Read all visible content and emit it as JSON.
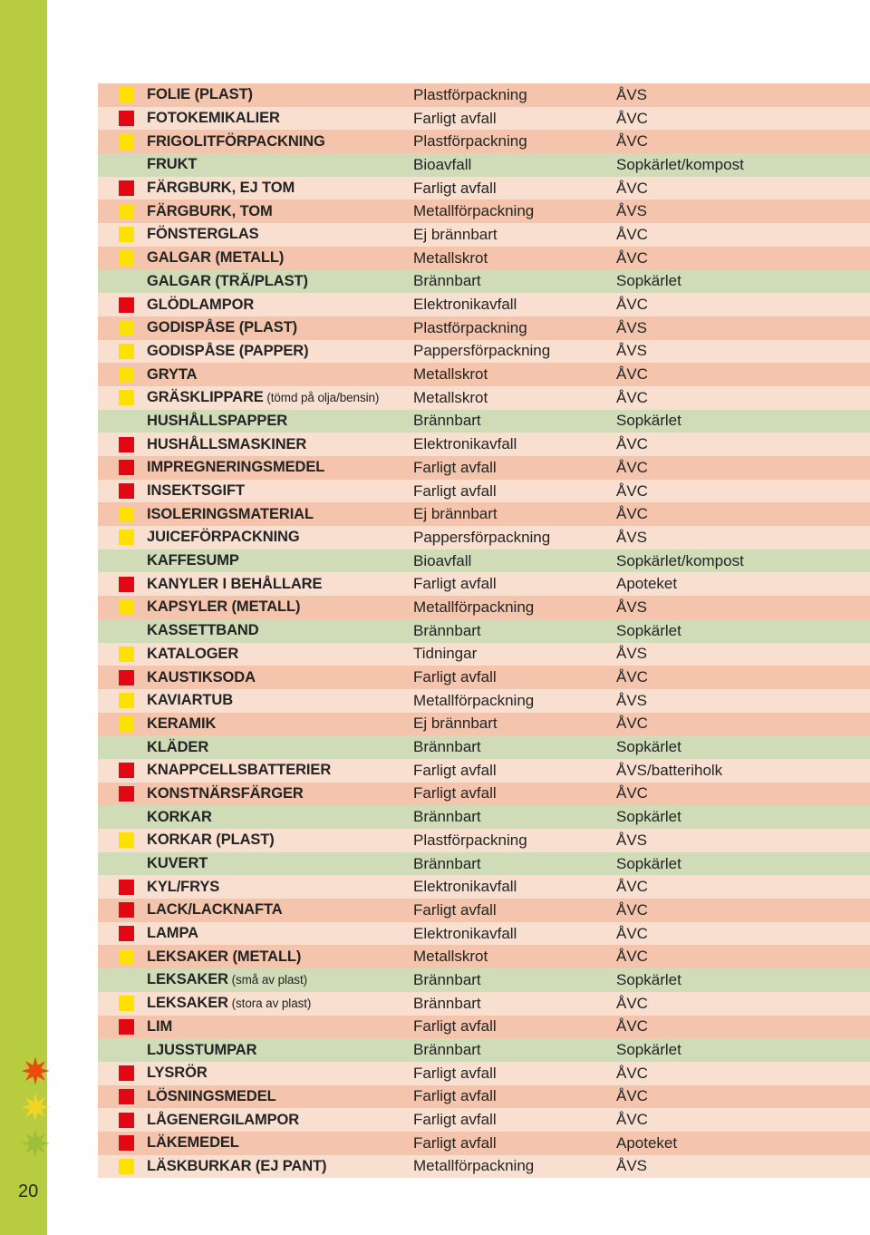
{
  "page_number": "20",
  "sidebar": {
    "color": "#b8cc3f"
  },
  "decor_icons": {
    "colors": [
      "#e84d0e",
      "#f2d423",
      "#9cbf3c"
    ],
    "size": 34
  },
  "swatch_colors": {
    "yellow": "#fde100",
    "red": "#e30613"
  },
  "row_bg_colors": {
    "orange": "#f4c5ac",
    "green": "#d0dcb8",
    "peach": "#f9dfcf"
  },
  "columns": [
    "item",
    "category",
    "destination"
  ],
  "rows": [
    {
      "sw": "yellow",
      "bg": "orange",
      "item": "FOLIE (PLAST)",
      "cat": "Plastförpackning",
      "dest": "ÅVS"
    },
    {
      "sw": "red",
      "bg": "peach",
      "item": "FOTOKEMIKALIER",
      "cat": "Farligt avfall",
      "dest": "ÅVC"
    },
    {
      "sw": "yellow",
      "bg": "orange",
      "item": "FRIGOLITFÖRPACKNING",
      "cat": "Plastförpackning",
      "dest": "ÅVC"
    },
    {
      "sw": null,
      "bg": "green",
      "item": "FRUKT",
      "cat": "Bioavfall",
      "dest": "Sopkärlet/kompost"
    },
    {
      "sw": "red",
      "bg": "peach",
      "item": "FÄRGBURK, EJ TOM",
      "cat": "Farligt avfall",
      "dest": "ÅVC"
    },
    {
      "sw": "yellow",
      "bg": "orange",
      "item": "FÄRGBURK, TOM",
      "cat": "Metallförpackning",
      "dest": "ÅVS"
    },
    {
      "sw": "yellow",
      "bg": "peach",
      "item": "FÖNSTERGLAS",
      "cat": "Ej brännbart",
      "dest": "ÅVC"
    },
    {
      "sw": "yellow",
      "bg": "orange",
      "item": "GALGAR (METALL)",
      "cat": "Metallskrot",
      "dest": "ÅVC"
    },
    {
      "sw": null,
      "bg": "green",
      "item": "GALGAR (TRÄ/PLAST)",
      "cat": "Brännbart",
      "dest": "Sopkärlet"
    },
    {
      "sw": "red",
      "bg": "peach",
      "item": "GLÖDLAMPOR",
      "cat": "Elektronikavfall",
      "dest": "ÅVC"
    },
    {
      "sw": "yellow",
      "bg": "orange",
      "item": "GODISPÅSE (PLAST)",
      "cat": "Plastförpackning",
      "dest": "ÅVS"
    },
    {
      "sw": "yellow",
      "bg": "peach",
      "item": "GODISPÅSE (PAPPER)",
      "cat": "Pappersförpackning",
      "dest": "ÅVS"
    },
    {
      "sw": "yellow",
      "bg": "orange",
      "item": "GRYTA",
      "cat": "Metallskrot",
      "dest": "ÅVC"
    },
    {
      "sw": "yellow",
      "bg": "peach",
      "item": "GRÄSKLIPPARE",
      "suffix": " (tömd på olja/bensin)",
      "cat": "Metallskrot",
      "dest": "ÅVC"
    },
    {
      "sw": null,
      "bg": "green",
      "item": "HUSHÅLLSPAPPER",
      "cat": "Brännbart",
      "dest": "Sopkärlet"
    },
    {
      "sw": "red",
      "bg": "peach",
      "item": "HUSHÅLLSMASKINER",
      "cat": "Elektronikavfall",
      "dest": "ÅVC"
    },
    {
      "sw": "red",
      "bg": "orange",
      "item": "IMPREGNERINGSMEDEL",
      "cat": "Farligt avfall",
      "dest": "ÅVC"
    },
    {
      "sw": "red",
      "bg": "peach",
      "item": "INSEKTSGIFT",
      "cat": "Farligt avfall",
      "dest": "ÅVC"
    },
    {
      "sw": "yellow",
      "bg": "orange",
      "item": "ISOLERINGSMATERIAL",
      "cat": "Ej brännbart",
      "dest": "ÅVC"
    },
    {
      "sw": "yellow",
      "bg": "peach",
      "item": "JUICEFÖRPACKNING",
      "cat": "Pappersförpackning",
      "dest": "ÅVS"
    },
    {
      "sw": null,
      "bg": "green",
      "item": "KAFFESUMP",
      "cat": "Bioavfall",
      "dest": "Sopkärlet/kompost"
    },
    {
      "sw": "red",
      "bg": "peach",
      "item": "KANYLER I BEHÅLLARE",
      "cat": "Farligt avfall",
      "dest": "Apoteket"
    },
    {
      "sw": "yellow",
      "bg": "orange",
      "item": "KAPSYLER (METALL)",
      "cat": "Metallförpackning",
      "dest": "ÅVS"
    },
    {
      "sw": null,
      "bg": "green",
      "item": "KASSETTBAND",
      "cat": "Brännbart",
      "dest": "Sopkärlet"
    },
    {
      "sw": "yellow",
      "bg": "peach",
      "item": "KATALOGER",
      "cat": "Tidningar",
      "dest": "ÅVS"
    },
    {
      "sw": "red",
      "bg": "orange",
      "item": "KAUSTIKSODA",
      "cat": "Farligt avfall",
      "dest": "ÅVC"
    },
    {
      "sw": "yellow",
      "bg": "peach",
      "item": "KAVIARTUB",
      "cat": "Metallförpackning",
      "dest": "ÅVS"
    },
    {
      "sw": "yellow",
      "bg": "orange",
      "item": "KERAMIK",
      "cat": "Ej brännbart",
      "dest": "ÅVC"
    },
    {
      "sw": null,
      "bg": "green",
      "item": "KLÄDER",
      "cat": "Brännbart",
      "dest": "Sopkärlet"
    },
    {
      "sw": "red",
      "bg": "peach",
      "item": "KNAPPCELLSBATTERIER",
      "cat": "Farligt avfall",
      "dest": "ÅVS/batteriholk"
    },
    {
      "sw": "red",
      "bg": "orange",
      "item": "KONSTNÄRSFÄRGER",
      "cat": "Farligt avfall",
      "dest": "ÅVC"
    },
    {
      "sw": null,
      "bg": "green",
      "item": "KORKAR",
      "cat": "Brännbart",
      "dest": "Sopkärlet"
    },
    {
      "sw": "yellow",
      "bg": "peach",
      "item": "KORKAR (PLAST)",
      "cat": "Plastförpackning",
      "dest": "ÅVS"
    },
    {
      "sw": null,
      "bg": "green",
      "item": "KUVERT",
      "cat": "Brännbart",
      "dest": "Sopkärlet"
    },
    {
      "sw": "red",
      "bg": "peach",
      "item": "KYL/FRYS",
      "cat": "Elektronikavfall",
      "dest": "ÅVC"
    },
    {
      "sw": "red",
      "bg": "orange",
      "item": "LACK/LACKNAFTA",
      "cat": "Farligt avfall",
      "dest": "ÅVC"
    },
    {
      "sw": "red",
      "bg": "peach",
      "item": "LAMPA",
      "cat": "Elektronikavfall",
      "dest": "ÅVC"
    },
    {
      "sw": "yellow",
      "bg": "orange",
      "item": "LEKSAKER (METALL)",
      "cat": "Metallskrot",
      "dest": "ÅVC"
    },
    {
      "sw": null,
      "bg": "green",
      "item": "LEKSAKER",
      "suffix": " (små av plast)",
      "cat": "Brännbart",
      "dest": "Sopkärlet"
    },
    {
      "sw": "yellow",
      "bg": "peach",
      "item": "LEKSAKER",
      "suffix": " (stora av plast)",
      "cat": "Brännbart",
      "dest": "ÅVC"
    },
    {
      "sw": "red",
      "bg": "orange",
      "item": "LIM",
      "cat": "Farligt avfall",
      "dest": "ÅVC"
    },
    {
      "sw": null,
      "bg": "green",
      "item": "LJUSSTUMPAR",
      "cat": "Brännbart",
      "dest": "Sopkärlet"
    },
    {
      "sw": "red",
      "bg": "peach",
      "item": "LYSRÖR",
      "cat": "Farligt avfall",
      "dest": "ÅVC"
    },
    {
      "sw": "red",
      "bg": "orange",
      "item": "LÖSNINGSMEDEL",
      "cat": "Farligt avfall",
      "dest": "ÅVC"
    },
    {
      "sw": "red",
      "bg": "peach",
      "item": "LÅGENERGILAMPOR",
      "cat": "Farligt avfall",
      "dest": "ÅVC"
    },
    {
      "sw": "red",
      "bg": "orange",
      "item": "LÄKEMEDEL",
      "cat": "Farligt avfall",
      "dest": "Apoteket"
    },
    {
      "sw": "yellow",
      "bg": "peach",
      "item": "LÄSKBURKAR (EJ PANT)",
      "cat": "Metallförpackning",
      "dest": "ÅVS"
    }
  ]
}
